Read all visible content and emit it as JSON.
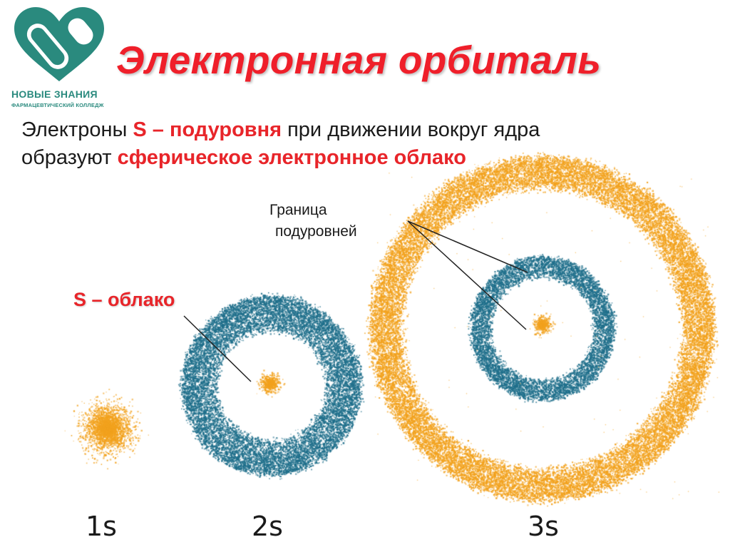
{
  "logo": {
    "name": "НОВЫЕ ЗНАНИЯ",
    "subtitle": "ФАРМАЦЕВТИЧЕСКИЙ КОЛЛЕДЖ",
    "color": "#2a8a7e"
  },
  "title": "Электронная орбиталь",
  "body": {
    "line1_a": "Электроны ",
    "line1_b": "S – подуровня",
    "line1_c": " при движении вокруг ядра",
    "line2_a": "образуют ",
    "line2_b": "сферическое электронное облако"
  },
  "labels": {
    "boundary_line1": "Граница",
    "boundary_line2": "подуровней",
    "s_cloud": "S – облако"
  },
  "orbitals": [
    {
      "name": "1s"
    },
    {
      "name": "2s"
    },
    {
      "name": "3s"
    }
  ],
  "colors": {
    "title": "#ef1f2a",
    "accent": "#e8252a",
    "orange": "#f2a21e",
    "teal": "#1f6f8b"
  }
}
